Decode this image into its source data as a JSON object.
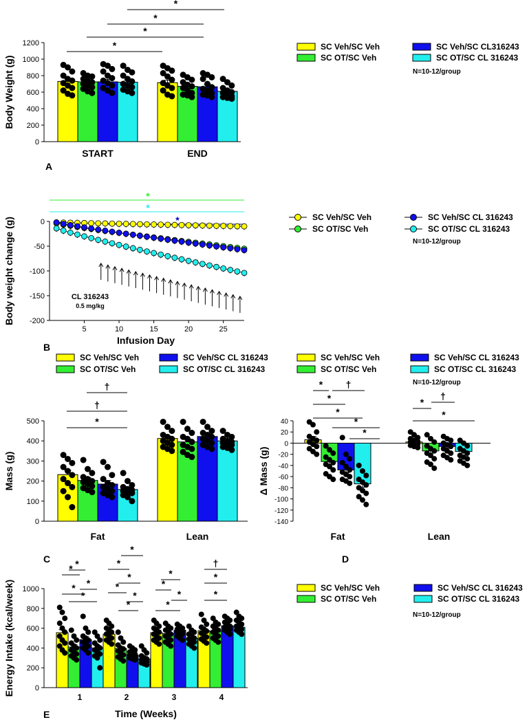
{
  "colors": {
    "yellow": "#ffff00",
    "green": "#33ee33",
    "blue": "#1010ee",
    "cyan": "#22eeee",
    "dark_blue": "#0000bb",
    "black": "#000000"
  },
  "chart_data": [
    {
      "panel": "A",
      "type": "bar",
      "ylabel": "Body Weight (g)",
      "ylim": [
        0,
        1200
      ],
      "yticks": [
        0,
        200,
        400,
        600,
        800,
        1000,
        1200
      ],
      "categories": [
        "START",
        "END"
      ],
      "series": [
        {
          "name": "SC Veh/SC Veh",
          "color": "yellow",
          "values": [
            730,
            715
          ],
          "err": [
            30,
            30
          ]
        },
        {
          "name": "SC OT/SC Veh",
          "color": "green",
          "values": [
            725,
            670
          ],
          "err": [
            25,
            25
          ]
        },
        {
          "name": "SC Veh/SC CL316243",
          "color": "blue",
          "values": [
            725,
            665
          ],
          "err": [
            30,
            25
          ]
        },
        {
          "name": "SC OT/SC CL 316243",
          "color": "cyan",
          "values": [
            720,
            610
          ],
          "err": [
            25,
            25
          ]
        }
      ],
      "points": [
        [
          [
            930,
            900,
            850,
            800,
            760,
            740,
            710,
            680,
            650,
            620,
            580,
            560
          ],
          [
            920,
            890,
            860,
            830,
            790,
            750,
            710,
            680,
            650,
            620,
            570,
            550
          ]
        ],
        [
          [
            830,
            800,
            790,
            760,
            740,
            720,
            700,
            680,
            660,
            640,
            610,
            590
          ],
          [
            810,
            780,
            750,
            720,
            690,
            670,
            650,
            620,
            590,
            570,
            560,
            540
          ]
        ],
        [
          [
            940,
            920,
            880,
            850,
            800,
            770,
            740,
            710,
            680,
            650,
            620,
            590
          ],
          [
            830,
            810,
            780,
            760,
            700,
            660,
            640,
            620,
            590,
            570,
            560,
            540
          ]
        ],
        [
          [
            920,
            870,
            840,
            800,
            760,
            730,
            700,
            680,
            660,
            630,
            610,
            590
          ],
          [
            760,
            720,
            680,
            650,
            620,
            600,
            590,
            570,
            550,
            540,
            530,
            520
          ]
        ]
      ],
      "legend": [
        "SC Veh/SC Veh",
        "SC OT/SC Veh",
        "SC Veh/SC CL316243",
        "SC OT/SC CL 316243"
      ],
      "legend_note": "N=10-12/group",
      "annotations": [
        "*",
        "*",
        "*",
        "*"
      ]
    },
    {
      "panel": "B",
      "type": "line",
      "xlabel": "Infusion Day",
      "ylabel": "Body weight change (g)",
      "xlim": [
        0,
        28
      ],
      "ylim": [
        -200,
        0
      ],
      "xticks": [
        5,
        10,
        15,
        20,
        25
      ],
      "yticks": [
        0,
        -50,
        -100,
        -150,
        -200
      ],
      "series": [
        {
          "name": "SC Veh/SC Veh",
          "color": "yellow",
          "start": -2,
          "end": -10
        },
        {
          "name": "SC OT/SC Veh",
          "color": "green",
          "start": -4,
          "end": -55
        },
        {
          "name": "SC Veh/SC CL 316243",
          "color": "blue",
          "start": -2,
          "end": -58
        },
        {
          "name": "SC OT/SC CL 316243",
          "color": "cyan",
          "start": -14,
          "end": -104
        }
      ],
      "injection_days": [
        7,
        8,
        9,
        10,
        11,
        12,
        13,
        14,
        15,
        16,
        17,
        18,
        19,
        20,
        21,
        22,
        23,
        24,
        25,
        26,
        27
      ],
      "annotation_text": "CL 316243",
      "annotation_dose": "0.5 mg/kg",
      "sig_marks": [
        "*",
        "*",
        "*"
      ],
      "legend": [
        "SC Veh/SC Veh",
        "SC OT/SC Veh",
        "SC Veh/SC CL 316243",
        "SC OT/SC CL 316243"
      ],
      "legend_note": "N=10-12/group"
    },
    {
      "panel": "C",
      "type": "bar",
      "ylabel": "Mass (g)",
      "ylim": [
        0,
        500
      ],
      "yticks": [
        0,
        100,
        200,
        300,
        400,
        500
      ],
      "categories": [
        "Fat",
        "Lean"
      ],
      "series": [
        {
          "name": "SC Veh/SC Veh",
          "color": "yellow",
          "values": [
            232,
            412
          ],
          "err": [
            22,
            12
          ]
        },
        {
          "name": "SC OT/SC Veh",
          "color": "green",
          "values": [
            203,
            395
          ],
          "err": [
            15,
            14
          ]
        },
        {
          "name": "SC Veh/SC CL 316243",
          "color": "blue",
          "values": [
            185,
            422
          ],
          "err": [
            18,
            12
          ]
        },
        {
          "name": "SC OT/SC CL 316243",
          "color": "cyan",
          "values": [
            158,
            400
          ],
          "err": [
            12,
            10
          ]
        }
      ],
      "points": [
        [
          [
            330,
            310,
            290,
            270,
            250,
            230,
            210,
            190,
            170,
            150,
            120,
            70
          ],
          [
            495,
            470,
            450,
            430,
            420,
            410,
            400,
            390,
            380,
            370,
            360,
            350
          ]
        ],
        [
          [
            305,
            260,
            240,
            220,
            210,
            200,
            195,
            185,
            175,
            165,
            155,
            145
          ],
          [
            495,
            460,
            440,
            420,
            410,
            395,
            380,
            370,
            360,
            345,
            330,
            320
          ]
        ],
        [
          [
            295,
            270,
            230,
            210,
            190,
            180,
            170,
            160,
            150,
            140,
            130,
            120
          ],
          [
            495,
            470,
            450,
            440,
            430,
            420,
            410,
            400,
            390,
            380,
            370,
            360
          ]
        ],
        [
          [
            240,
            200,
            180,
            170,
            160,
            155,
            150,
            145,
            140,
            130,
            120,
            100
          ],
          [
            450,
            430,
            420,
            410,
            400,
            395,
            390,
            385,
            380,
            370,
            365,
            355
          ]
        ]
      ],
      "legend": [
        "SC Veh/SC Veh",
        "SC Veh/SC CL 316243",
        "SC OT/SC Veh",
        "SC OT/SC CL 316243"
      ],
      "annotations": [
        "†",
        "†",
        "*"
      ]
    },
    {
      "panel": "D",
      "type": "bar",
      "ylabel": "Δ Mass (g)",
      "ylim": [
        -140,
        40
      ],
      "yticks": [
        40,
        20,
        0,
        -20,
        -40,
        -60,
        -80,
        -100,
        -120,
        -140
      ],
      "categories": [
        "Fat",
        "Lean"
      ],
      "series": [
        {
          "name": "SC Veh/SC Veh",
          "color": "yellow",
          "values": [
            6,
            2
          ],
          "err": [
            6,
            3
          ]
        },
        {
          "name": "SC OT/SC Veh",
          "color": "green",
          "values": [
            -33,
            -14
          ],
          "err": [
            5,
            4
          ]
        },
        {
          "name": "SC Veh/SC CL 316243",
          "color": "blue",
          "values": [
            -48,
            -6
          ],
          "err": [
            5,
            3
          ]
        },
        {
          "name": "SC OT/SC CL 316243",
          "color": "cyan",
          "values": [
            -73,
            -15
          ],
          "err": [
            6,
            3
          ]
        }
      ],
      "points": [
        [
          [
            38,
            33,
            20,
            12,
            8,
            5,
            2,
            -2,
            -6,
            -10,
            -15,
            -20
          ],
          [
            20,
            15,
            10,
            8,
            5,
            3,
            2,
            0,
            -2,
            -4,
            -6,
            -8
          ]
        ],
        [
          [
            -5,
            -12,
            -18,
            -25,
            -30,
            -35,
            -38,
            -42,
            -48,
            -55,
            -60,
            -65
          ],
          [
            15,
            8,
            2,
            -5,
            -10,
            -14,
            -18,
            -22,
            -28,
            -34,
            -38,
            -45
          ]
        ],
        [
          [
            10,
            -20,
            -28,
            -35,
            -42,
            -48,
            -52,
            -56,
            -60,
            -65,
            -68,
            -72
          ],
          [
            12,
            8,
            5,
            0,
            -3,
            -6,
            -10,
            -14,
            -18,
            -22,
            -26,
            -30
          ]
        ],
        [
          [
            -40,
            -50,
            -58,
            -65,
            -70,
            -75,
            -80,
            -85,
            -90,
            -96,
            -102,
            -110
          ],
          [
            5,
            0,
            -5,
            -10,
            -14,
            -18,
            -22,
            -25,
            -28,
            -32,
            -36,
            -40
          ]
        ]
      ],
      "legend": [
        "SC Veh/SC Veh",
        "SC Veh/SC CL 316243",
        "SC OT/SC Veh",
        "SC OT/SC CL 316243"
      ],
      "legend_note": "N=10-12/group",
      "annotations": [
        "*",
        "†",
        "*",
        "*",
        "*",
        "*",
        "*",
        "†",
        "*"
      ]
    },
    {
      "panel": "E",
      "type": "bar",
      "xlabel": "Time (Weeks)",
      "ylabel": "Energy Intake (kcal/week)",
      "ylim": [
        0,
        1000
      ],
      "yticks": [
        0,
        200,
        400,
        600,
        800,
        1000
      ],
      "categories": [
        "1",
        "2",
        "3",
        "4"
      ],
      "series": [
        {
          "name": "SC Veh/SC Veh",
          "color": "yellow",
          "values": [
            555,
            540,
            555,
            575
          ],
          "err": [
            30,
            25,
            20,
            20
          ]
        },
        {
          "name": "SC OT/SC Veh",
          "color": "green",
          "values": [
            410,
            395,
            545,
            570
          ],
          "err": [
            25,
            20,
            20,
            20
          ]
        },
        {
          "name": "SC Veh/SC CL 316243",
          "color": "blue",
          "values": [
            485,
            330,
            580,
            625
          ],
          "err": [
            30,
            15,
            20,
            20
          ]
        },
        {
          "name": "SC OT/SC CL 316243",
          "color": "cyan",
          "values": [
            400,
            290,
            500,
            610
          ],
          "err": [
            25,
            15,
            20,
            20
          ]
        }
      ],
      "points": [
        [
          [
            810,
            760,
            700,
            650,
            600,
            560,
            520,
            480,
            450,
            420,
            380,
            350
          ],
          [
            680,
            650,
            620,
            600,
            580,
            560,
            540,
            520,
            500,
            480,
            460,
            440
          ],
          [
            680,
            650,
            620,
            600,
            580,
            560,
            540,
            520,
            500,
            480,
            460,
            440
          ],
          [
            740,
            680,
            640,
            610,
            590,
            570,
            550,
            530,
            510,
            490,
            470,
            450
          ]
        ],
        [
          [
            580,
            520,
            480,
            450,
            420,
            400,
            380,
            360,
            340,
            320,
            300,
            280
          ],
          [
            560,
            500,
            460,
            430,
            400,
            390,
            370,
            350,
            330,
            310,
            290,
            270
          ],
          [
            650,
            620,
            600,
            580,
            560,
            540,
            520,
            500,
            480,
            460,
            440,
            420
          ],
          [
            700,
            660,
            640,
            620,
            600,
            580,
            560,
            540,
            520,
            500,
            480,
            460
          ]
        ],
        [
          [
            720,
            600,
            560,
            520,
            500,
            480,
            460,
            440,
            420,
            400,
            380,
            350
          ],
          [
            420,
            400,
            380,
            360,
            350,
            340,
            330,
            320,
            310,
            300,
            290,
            280
          ],
          [
            640,
            620,
            600,
            590,
            580,
            570,
            560,
            550,
            540,
            520,
            500,
            480
          ],
          [
            720,
            700,
            680,
            660,
            640,
            620,
            610,
            600,
            590,
            580,
            560,
            540
          ]
        ],
        [
          [
            560,
            520,
            480,
            450,
            420,
            400,
            380,
            360,
            340,
            320,
            300,
            200
          ],
          [
            420,
            380,
            350,
            320,
            300,
            290,
            280,
            270,
            260,
            250,
            240,
            230
          ],
          [
            620,
            580,
            560,
            540,
            520,
            500,
            490,
            480,
            460,
            440,
            420,
            400
          ],
          [
            760,
            720,
            700,
            680,
            660,
            640,
            620,
            600,
            590,
            580,
            560,
            540
          ]
        ]
      ],
      "legend": [
        "SC Veh/SC Veh",
        "SC OT/SC Veh",
        "SC Veh/SC CL 316243",
        "SC OT/SC CL 316243"
      ],
      "legend_note": "N=10-12/group",
      "annotations": [
        "*",
        "*",
        "*",
        "*",
        "*",
        "*",
        "*",
        "*",
        "*",
        "*",
        "*",
        "*",
        "*",
        "*",
        "*",
        "*",
        "*",
        "*",
        "*",
        "†",
        "*",
        "*"
      ]
    }
  ],
  "panel_labels": [
    "A",
    "B",
    "C",
    "D",
    "E"
  ]
}
